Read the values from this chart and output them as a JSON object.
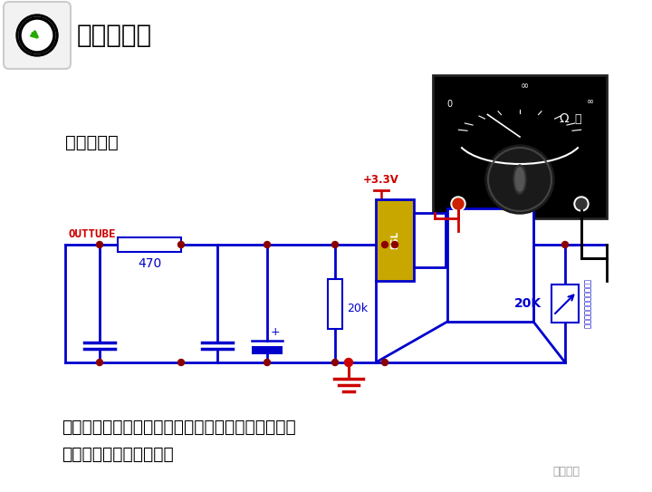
{
  "bg_color": "#ffffff",
  "title_text": "常见元器件",
  "subtitle_text": "感温包电路",
  "bottom_text_line1": "开短路均有故障代码显示，阻值无异常，限频或保护",
  "bottom_text_line2": "停机需根据指示灯判断。",
  "brand_text": "制冷百家",
  "outtube_label": "OUTTUBE",
  "r470_label": "470",
  "r20k_label": "20k",
  "r20K_label": "20K",
  "v33_label": "+3.3V",
  "omega_label": "Ω 档",
  "circuit_color": "#0000cd",
  "gnd_color": "#cc0000",
  "label_color": "#cc0000",
  "node_color": "#8b0000",
  "meter_bg": "#000000",
  "figsize": [
    7.2,
    5.43
  ],
  "dpi": 100
}
